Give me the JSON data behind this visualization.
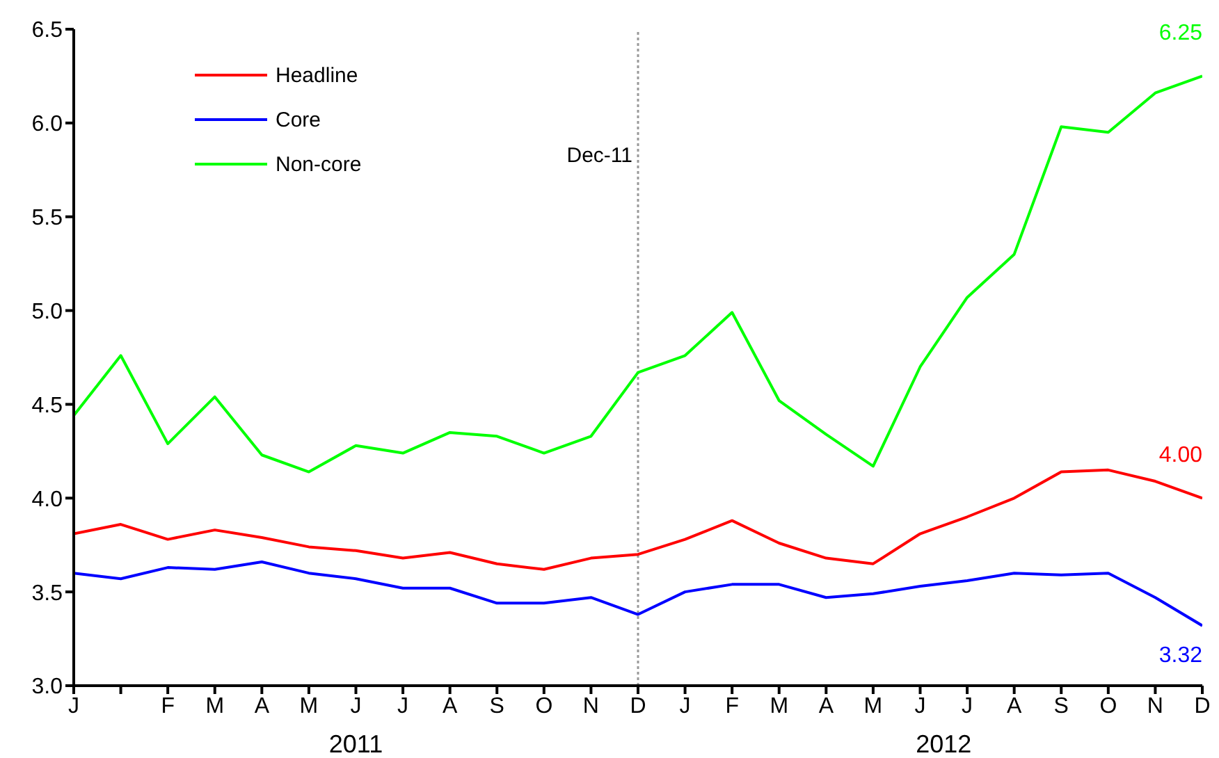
{
  "chart_data": {
    "type": "line",
    "categories": [
      "J",
      null,
      "F",
      "M",
      "A",
      "M",
      "J",
      "J",
      "A",
      "S",
      "O",
      "N",
      "D",
      "J",
      "F",
      "M",
      "A",
      "M",
      "J",
      "J",
      "A",
      "S",
      "O",
      "N",
      "D"
    ],
    "series": [
      {
        "name": "Headline",
        "color": "#ff0000",
        "values": [
          3.81,
          3.86,
          3.78,
          3.83,
          3.79,
          3.74,
          3.72,
          3.68,
          3.71,
          3.65,
          3.62,
          3.68,
          3.7,
          3.78,
          3.88,
          3.76,
          3.68,
          3.65,
          3.81,
          3.9,
          4.0,
          4.14,
          4.15,
          4.09,
          4.0
        ],
        "value_labels": [
          null,
          null,
          null,
          null,
          null,
          null,
          null,
          null,
          null,
          null,
          null,
          null,
          null,
          null,
          null,
          null,
          null,
          null,
          null,
          null,
          null,
          null,
          null,
          null,
          "4.00"
        ]
      },
      {
        "name": "Core",
        "color": "#0000ff",
        "values": [
          3.6,
          3.57,
          3.63,
          3.62,
          3.66,
          3.6,
          3.57,
          3.52,
          3.52,
          3.44,
          3.44,
          3.47,
          3.38,
          3.5,
          3.54,
          3.54,
          3.47,
          3.49,
          3.53,
          3.56,
          3.6,
          3.59,
          3.6,
          3.47,
          3.32
        ],
        "value_labels": [
          null,
          null,
          null,
          null,
          null,
          null,
          null,
          null,
          null,
          null,
          null,
          null,
          null,
          null,
          null,
          null,
          null,
          null,
          null,
          null,
          null,
          null,
          null,
          null,
          "3.32"
        ]
      },
      {
        "name": "Non-core",
        "color": "#00ff00",
        "values": [
          4.44,
          4.76,
          4.29,
          4.54,
          4.23,
          4.14,
          4.28,
          4.24,
          4.35,
          4.33,
          4.24,
          4.33,
          4.67,
          4.76,
          4.99,
          4.52,
          4.34,
          4.17,
          4.7,
          5.07,
          5.3,
          5.98,
          5.95,
          6.16,
          6.25
        ],
        "value_labels": [
          null,
          null,
          null,
          null,
          null,
          null,
          null,
          null,
          null,
          null,
          null,
          null,
          null,
          null,
          null,
          null,
          null,
          null,
          null,
          null,
          null,
          null,
          null,
          null,
          "6.25"
        ]
      }
    ],
    "ylim": [
      3.0,
      6.5
    ],
    "yticks": [
      {
        "value": 3,
        "label": "3.0"
      },
      3.5,
      {
        "value": 4,
        "label": "4.0"
      },
      4.5,
      {
        "value": 5,
        "label": "5.0"
      },
      5.5,
      {
        "value": 6,
        "label": "6.0"
      },
      6.5
    ],
    "ref_lines": [
      {
        "axis": "x",
        "value": "D",
        "label": "Dec-11",
        "color": "#999999",
        "line_style": "dotted"
      }
    ],
    "annotations": [
      "2011",
      "2012"
    ],
    "legend": "top left",
    "grid": false,
    "marker": "none",
    "line_style": "solid"
  }
}
